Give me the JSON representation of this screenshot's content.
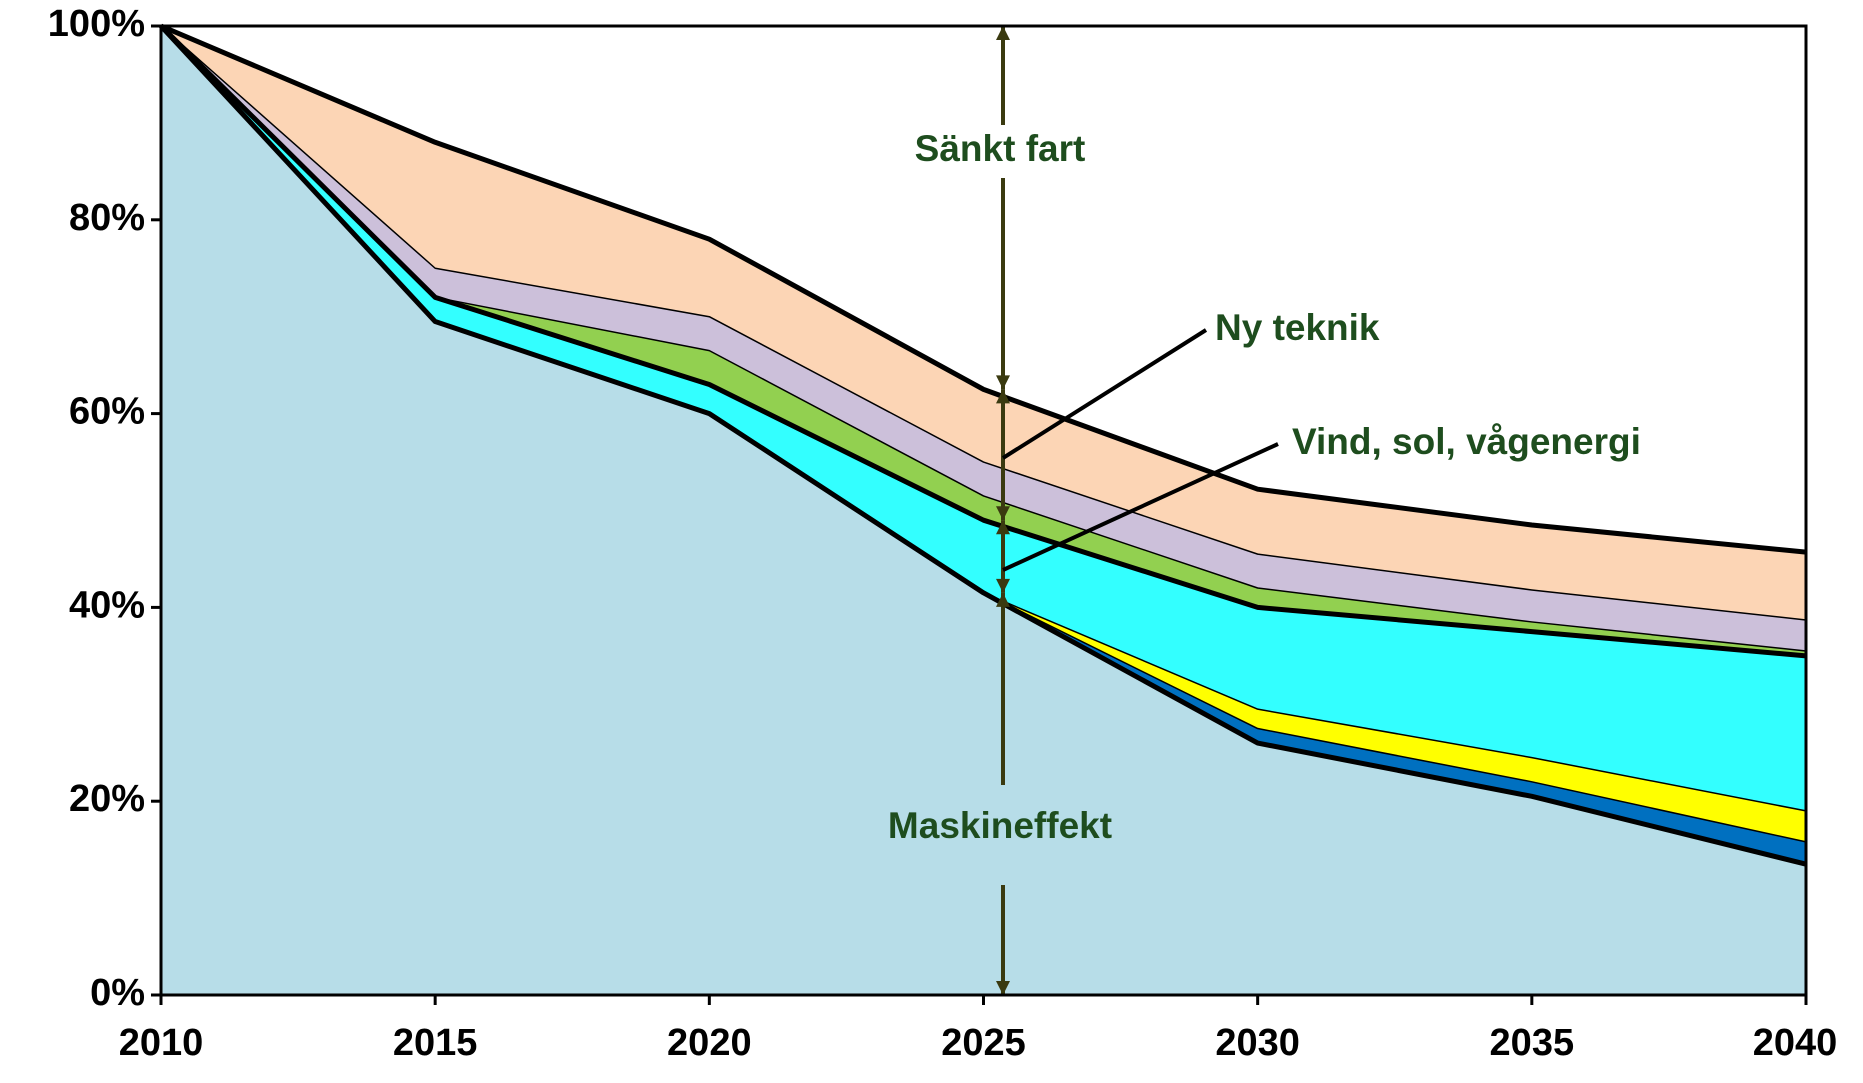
{
  "chart_data": {
    "type": "stacked_area",
    "x": [
      2010,
      2015,
      2020,
      2025,
      2030,
      2035,
      2040
    ],
    "xlim": [
      2010,
      2040
    ],
    "xticks": [
      2010,
      2015,
      2020,
      2025,
      2030,
      2035,
      2040
    ],
    "ylim": [
      0,
      100
    ],
    "yticks": [
      {
        "value": 0,
        "label": "0%"
      },
      {
        "value": 20,
        "label": "20%"
      },
      {
        "value": 40,
        "label": "40%"
      },
      {
        "value": 60,
        "label": "60%"
      },
      {
        "value": 80,
        "label": "80%"
      },
      {
        "value": 100,
        "label": "100%"
      }
    ],
    "grid": false,
    "series": [
      {
        "color": "#b7dde8",
        "values": [
          100,
          69.5,
          60,
          41.5,
          26,
          20.5,
          13.5
        ]
      },
      {
        "color": "#0070c0",
        "values": [
          0,
          0,
          0,
          0,
          1.5,
          1.5,
          2.3
        ]
      },
      {
        "color": "#ffff00",
        "values": [
          0,
          0,
          0,
          0,
          2,
          2.5,
          3.2
        ]
      },
      {
        "color": "#33ffff",
        "values": [
          0,
          2.5,
          3,
          7.5,
          10.5,
          13,
          16
        ]
      },
      {
        "color": "#92d050",
        "values": [
          0,
          0,
          3.5,
          2.5,
          2,
          1,
          0.5
        ]
      },
      {
        "color": "#ccc0da",
        "values": [
          0,
          3,
          3.5,
          3.5,
          3.5,
          3.3,
          3.2
        ]
      },
      {
        "color": "#fcd5b5",
        "values": [
          0,
          13,
          8,
          7.5,
          6.7,
          6.7,
          7
        ]
      }
    ],
    "annotations": [
      "Sänkt fart",
      "Ny teknik",
      "Vind, sol, vågenergi",
      "Maskineffekt"
    ]
  }
}
